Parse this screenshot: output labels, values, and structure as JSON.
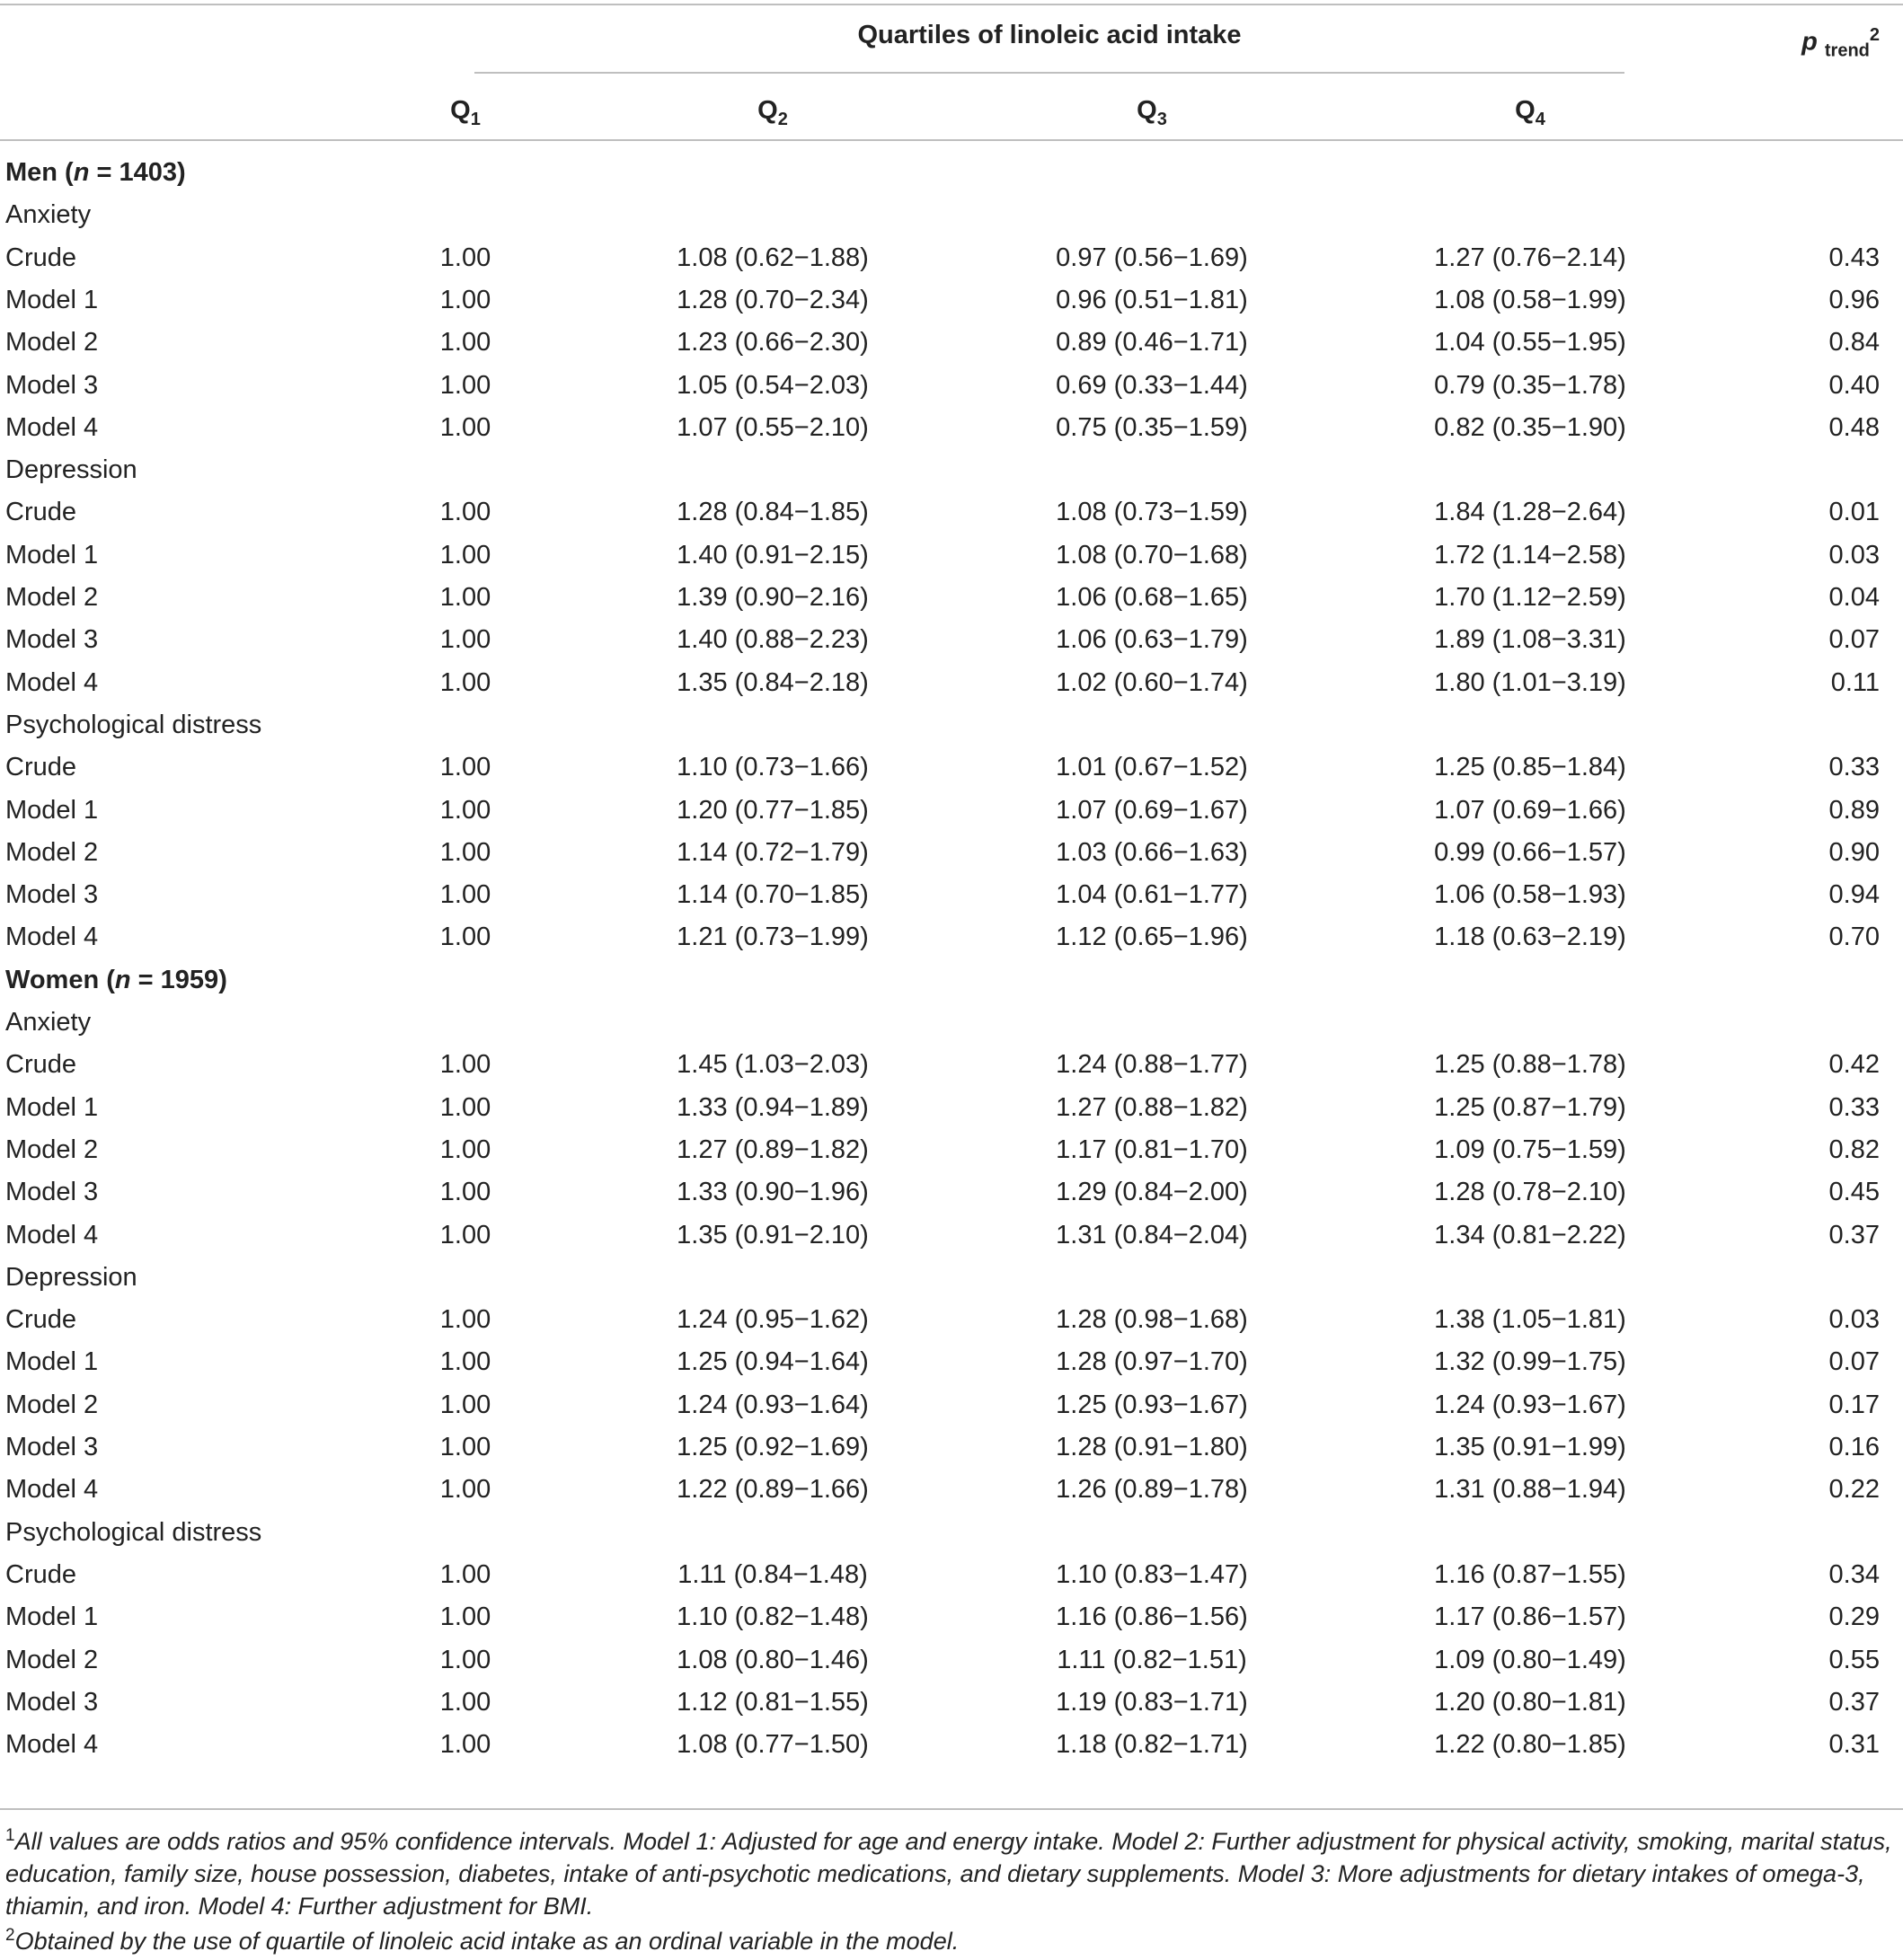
{
  "header": {
    "spanner": "Quartiles of linoleic acid intake",
    "ptrend_p": "p",
    "ptrend_sub": "trend",
    "ptrend_sup": "2",
    "cols": [
      {
        "main": "Q",
        "sub": "1"
      },
      {
        "main": "Q",
        "sub": "2"
      },
      {
        "main": "Q",
        "sub": "3"
      },
      {
        "main": "Q",
        "sub": "4"
      }
    ]
  },
  "groups": [
    {
      "label_prefix": "Men (",
      "label_n": "n",
      "label_suffix": " = 1403)",
      "sections": [
        {
          "title": "Anxiety",
          "rows": [
            {
              "label": "Crude",
              "q1": "1.00",
              "q2": "1.08 (0.62−1.88)",
              "q3": "0.97 (0.56−1.69)",
              "q4": "1.27 (0.76−2.14)",
              "p": "0.43"
            },
            {
              "label": "Model 1",
              "q1": "1.00",
              "q2": "1.28 (0.70−2.34)",
              "q3": "0.96 (0.51−1.81)",
              "q4": "1.08 (0.58−1.99)",
              "p": "0.96"
            },
            {
              "label": "Model 2",
              "q1": "1.00",
              "q2": "1.23 (0.66−2.30)",
              "q3": "0.89 (0.46−1.71)",
              "q4": "1.04 (0.55−1.95)",
              "p": "0.84"
            },
            {
              "label": "Model 3",
              "q1": "1.00",
              "q2": "1.05 (0.54−2.03)",
              "q3": "0.69 (0.33−1.44)",
              "q4": "0.79 (0.35−1.78)",
              "p": "0.40"
            },
            {
              "label": "Model 4",
              "q1": "1.00",
              "q2": "1.07 (0.55−2.10)",
              "q3": "0.75 (0.35−1.59)",
              "q4": "0.82 (0.35−1.90)",
              "p": "0.48"
            }
          ]
        },
        {
          "title": "Depression",
          "rows": [
            {
              "label": "Crude",
              "q1": "1.00",
              "q2": "1.28 (0.84−1.85)",
              "q3": "1.08 (0.73−1.59)",
              "q4": "1.84 (1.28−2.64)",
              "p": "0.01"
            },
            {
              "label": "Model 1",
              "q1": "1.00",
              "q2": "1.40 (0.91−2.15)",
              "q3": "1.08 (0.70−1.68)",
              "q4": "1.72 (1.14−2.58)",
              "p": "0.03"
            },
            {
              "label": "Model 2",
              "q1": "1.00",
              "q2": "1.39 (0.90−2.16)",
              "q3": "1.06 (0.68−1.65)",
              "q4": "1.70 (1.12−2.59)",
              "p": "0.04"
            },
            {
              "label": "Model 3",
              "q1": "1.00",
              "q2": "1.40 (0.88−2.23)",
              "q3": "1.06 (0.63−1.79)",
              "q4": "1.89 (1.08−3.31)",
              "p": "0.07"
            },
            {
              "label": "Model 4",
              "q1": "1.00",
              "q2": "1.35 (0.84−2.18)",
              "q3": "1.02 (0.60−1.74)",
              "q4": "1.80 (1.01−3.19)",
              "p": "0.11"
            }
          ]
        },
        {
          "title": "Psychological distress",
          "rows": [
            {
              "label": "Crude",
              "q1": "1.00",
              "q2": "1.10 (0.73−1.66)",
              "q3": "1.01 (0.67−1.52)",
              "q4": "1.25 (0.85−1.84)",
              "p": "0.33"
            },
            {
              "label": "Model 1",
              "q1": "1.00",
              "q2": "1.20 (0.77−1.85)",
              "q3": "1.07 (0.69−1.67)",
              "q4": "1.07 (0.69−1.66)",
              "p": "0.89"
            },
            {
              "label": "Model 2",
              "q1": "1.00",
              "q2": "1.14 (0.72−1.79)",
              "q3": "1.03 (0.66−1.63)",
              "q4": "0.99 (0.66−1.57)",
              "p": "0.90"
            },
            {
              "label": "Model 3",
              "q1": "1.00",
              "q2": "1.14 (0.70−1.85)",
              "q3": "1.04 (0.61−1.77)",
              "q4": "1.06 (0.58−1.93)",
              "p": "0.94"
            },
            {
              "label": "Model 4",
              "q1": "1.00",
              "q2": "1.21 (0.73−1.99)",
              "q3": "1.12 (0.65−1.96)",
              "q4": "1.18 (0.63−2.19)",
              "p": "0.70"
            }
          ]
        }
      ]
    },
    {
      "label_prefix": "Women (",
      "label_n": "n",
      "label_suffix": " = 1959)",
      "sections": [
        {
          "title": "Anxiety",
          "rows": [
            {
              "label": "Crude",
              "q1": "1.00",
              "q2": "1.45 (1.03−2.03)",
              "q3": "1.24 (0.88−1.77)",
              "q4": "1.25 (0.88−1.78)",
              "p": "0.42"
            },
            {
              "label": "Model 1",
              "q1": "1.00",
              "q2": "1.33 (0.94−1.89)",
              "q3": "1.27 (0.88−1.82)",
              "q4": "1.25 (0.87−1.79)",
              "p": "0.33"
            },
            {
              "label": "Model 2",
              "q1": "1.00",
              "q2": "1.27 (0.89−1.82)",
              "q3": "1.17 (0.81−1.70)",
              "q4": "1.09 (0.75−1.59)",
              "p": "0.82"
            },
            {
              "label": "Model 3",
              "q1": "1.00",
              "q2": "1.33 (0.90−1.96)",
              "q3": "1.29 (0.84−2.00)",
              "q4": "1.28 (0.78−2.10)",
              "p": "0.45"
            },
            {
              "label": "Model 4",
              "q1": "1.00",
              "q2": "1.35 (0.91−2.10)",
              "q3": "1.31 (0.84−2.04)",
              "q4": "1.34 (0.81−2.22)",
              "p": "0.37"
            }
          ]
        },
        {
          "title": "Depression",
          "rows": [
            {
              "label": "Crude",
              "q1": "1.00",
              "q2": "1.24 (0.95−1.62)",
              "q3": "1.28 (0.98−1.68)",
              "q4": "1.38 (1.05−1.81)",
              "p": "0.03"
            },
            {
              "label": "Model 1",
              "q1": "1.00",
              "q2": "1.25 (0.94−1.64)",
              "q3": "1.28 (0.97−1.70)",
              "q4": "1.32 (0.99−1.75)",
              "p": "0.07"
            },
            {
              "label": "Model 2",
              "q1": "1.00",
              "q2": "1.24 (0.93−1.64)",
              "q3": "1.25 (0.93−1.67)",
              "q4": "1.24 (0.93−1.67)",
              "p": "0.17"
            },
            {
              "label": "Model 3",
              "q1": "1.00",
              "q2": "1.25 (0.92−1.69)",
              "q3": "1.28 (0.91−1.80)",
              "q4": "1.35 (0.91−1.99)",
              "p": "0.16"
            },
            {
              "label": "Model 4",
              "q1": "1.00",
              "q2": "1.22 (0.89−1.66)",
              "q3": "1.26 (0.89−1.78)",
              "q4": "1.31 (0.88−1.94)",
              "p": "0.22"
            }
          ]
        },
        {
          "title": "Psychological distress",
          "rows": [
            {
              "label": "Crude",
              "q1": "1.00",
              "q2": "1.11 (0.84−1.48)",
              "q3": "1.10 (0.83−1.47)",
              "q4": "1.16 (0.87−1.55)",
              "p": "0.34"
            },
            {
              "label": "Model 1",
              "q1": "1.00",
              "q2": "1.10 (0.82−1.48)",
              "q3": "1.16 (0.86−1.56)",
              "q4": "1.17 (0.86−1.57)",
              "p": "0.29"
            },
            {
              "label": "Model 2",
              "q1": "1.00",
              "q2": "1.08 (0.80−1.46)",
              "q3": "1.11 (0.82−1.51)",
              "q4": "1.09 (0.80−1.49)",
              "p": "0.55"
            },
            {
              "label": "Model 3",
              "q1": "1.00",
              "q2": "1.12 (0.81−1.55)",
              "q3": "1.19 (0.83−1.71)",
              "q4": "1.20 (0.80−1.81)",
              "p": "0.37"
            },
            {
              "label": "Model 4",
              "q1": "1.00",
              "q2": "1.08 (0.77−1.50)",
              "q3": "1.18 (0.82−1.71)",
              "q4": "1.22 (0.80−1.85)",
              "p": "0.31"
            }
          ]
        }
      ]
    }
  ],
  "footnotes": [
    {
      "mark": "1",
      "text": "All values are odds ratios and 95% confidence intervals. Model 1: Adjusted for age and energy intake. Model 2: Further adjustment for physical activity, smoking, marital status, education, family size, house possession, diabetes, intake of anti-psychotic medications, and dietary supplements. Model 3: More adjustments for dietary intakes of omega-3, thiamin, and iron. Model 4: Further adjustment for BMI."
    },
    {
      "mark": "2",
      "text": "Obtained by the use of quartile of linoleic acid intake as an ordinal variable in the model."
    }
  ]
}
